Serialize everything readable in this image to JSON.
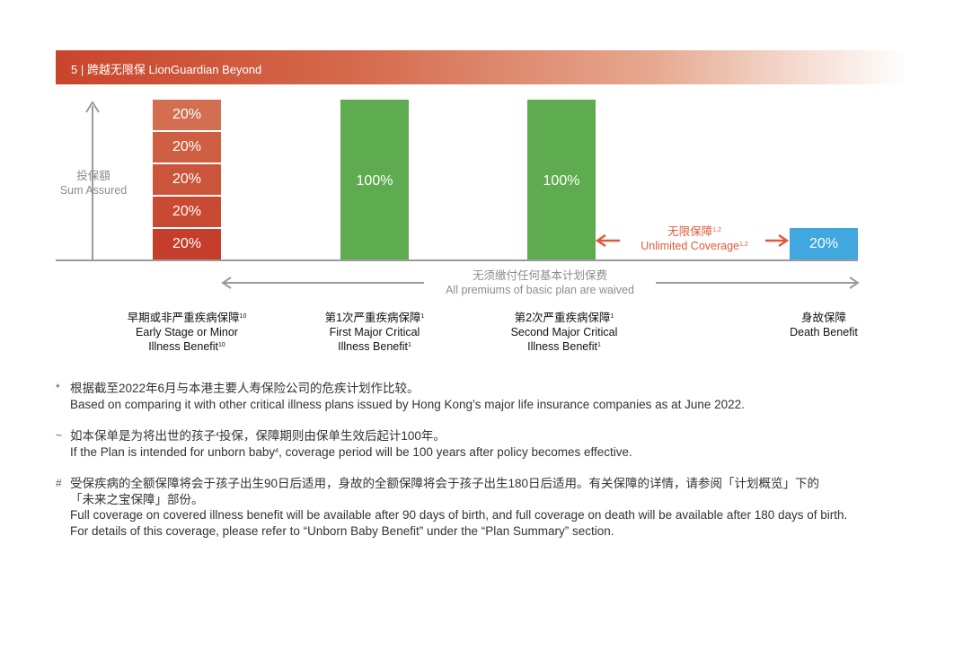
{
  "header": {
    "title": "5 | 跨越无限保  LionGuardian Beyond"
  },
  "axis": {
    "label_cn": "投保額",
    "label_en": "Sum Assured"
  },
  "bars": {
    "early_stage": {
      "segments": [
        "20%",
        "20%",
        "20%",
        "20%",
        "20%"
      ],
      "colors": [
        "#d36f50",
        "#cf5f43",
        "#cb553a",
        "#c84a32",
        "#c43e2b"
      ]
    },
    "first_major": {
      "value": "100%",
      "color": "#5fac50"
    },
    "second_major": {
      "value": "100%",
      "color": "#5fac50"
    },
    "death": {
      "value": "20%",
      "color": "#41a7df"
    }
  },
  "unlimited": {
    "label_cn": "无限保障",
    "label_cn_sup": "1,2",
    "label_en": "Unlimited Coverage",
    "label_en_sup": "1,2"
  },
  "waived": {
    "label_cn": "无须缴付任何基本计划保费",
    "label_en": "All premiums of basic plan are waived"
  },
  "categories": [
    {
      "cn": "早期或非严重疾病保障",
      "cn_sup": "10",
      "en1": "Early Stage or Minor",
      "en2": "Illness Benefit",
      "en_sup": "10"
    },
    {
      "cn": "第1次严重疾病保障",
      "cn_sup": "1",
      "en1": "First Major Critical",
      "en2": "Illness Benefit",
      "en_sup": "1"
    },
    {
      "cn": "第2次严重疾病保障",
      "cn_sup": "1",
      "en1": "Second Major Critical",
      "en2": "Illness Benefit",
      "en_sup": "1"
    },
    {
      "cn": "身故保障",
      "cn_sup": "",
      "en1": "Death Benefit",
      "en2": "",
      "en_sup": ""
    }
  ],
  "notes": [
    {
      "mark": "*",
      "cn": "根据截至2022年6月与本港主要人寿保险公司的危疾计划作比较。",
      "en": "Based on comparing it with other critical illness plans issued by Hong Kong’s major life insurance companies as at June 2022."
    },
    {
      "mark": "~",
      "cn_a": "如本保单是为将出世的孩子",
      "cn_sup": "4",
      "cn_b": "投保，保障期则由保单生效后起计100年。",
      "en_a": "If the Plan is intended for unborn baby",
      "en_sup": "4",
      "en_b": ", coverage period will be 100 years after policy becomes effective."
    },
    {
      "mark": "#",
      "cn1": "受保疾病的全额保障将会于孩子出生90日后适用，身故的全额保障将会于孩子出生180日后适用。有关保障的详情，请参阅「计划概览」下的",
      "cn2": "「未来之宝保障」部份。",
      "en1": "Full coverage on covered illness benefit will be available after 90 days of birth, and full coverage on death will be available after 180 days of birth.",
      "en2": "For details of this coverage, please refer to “Unborn Baby Benefit” under the “Plan Summary” section."
    }
  ]
}
